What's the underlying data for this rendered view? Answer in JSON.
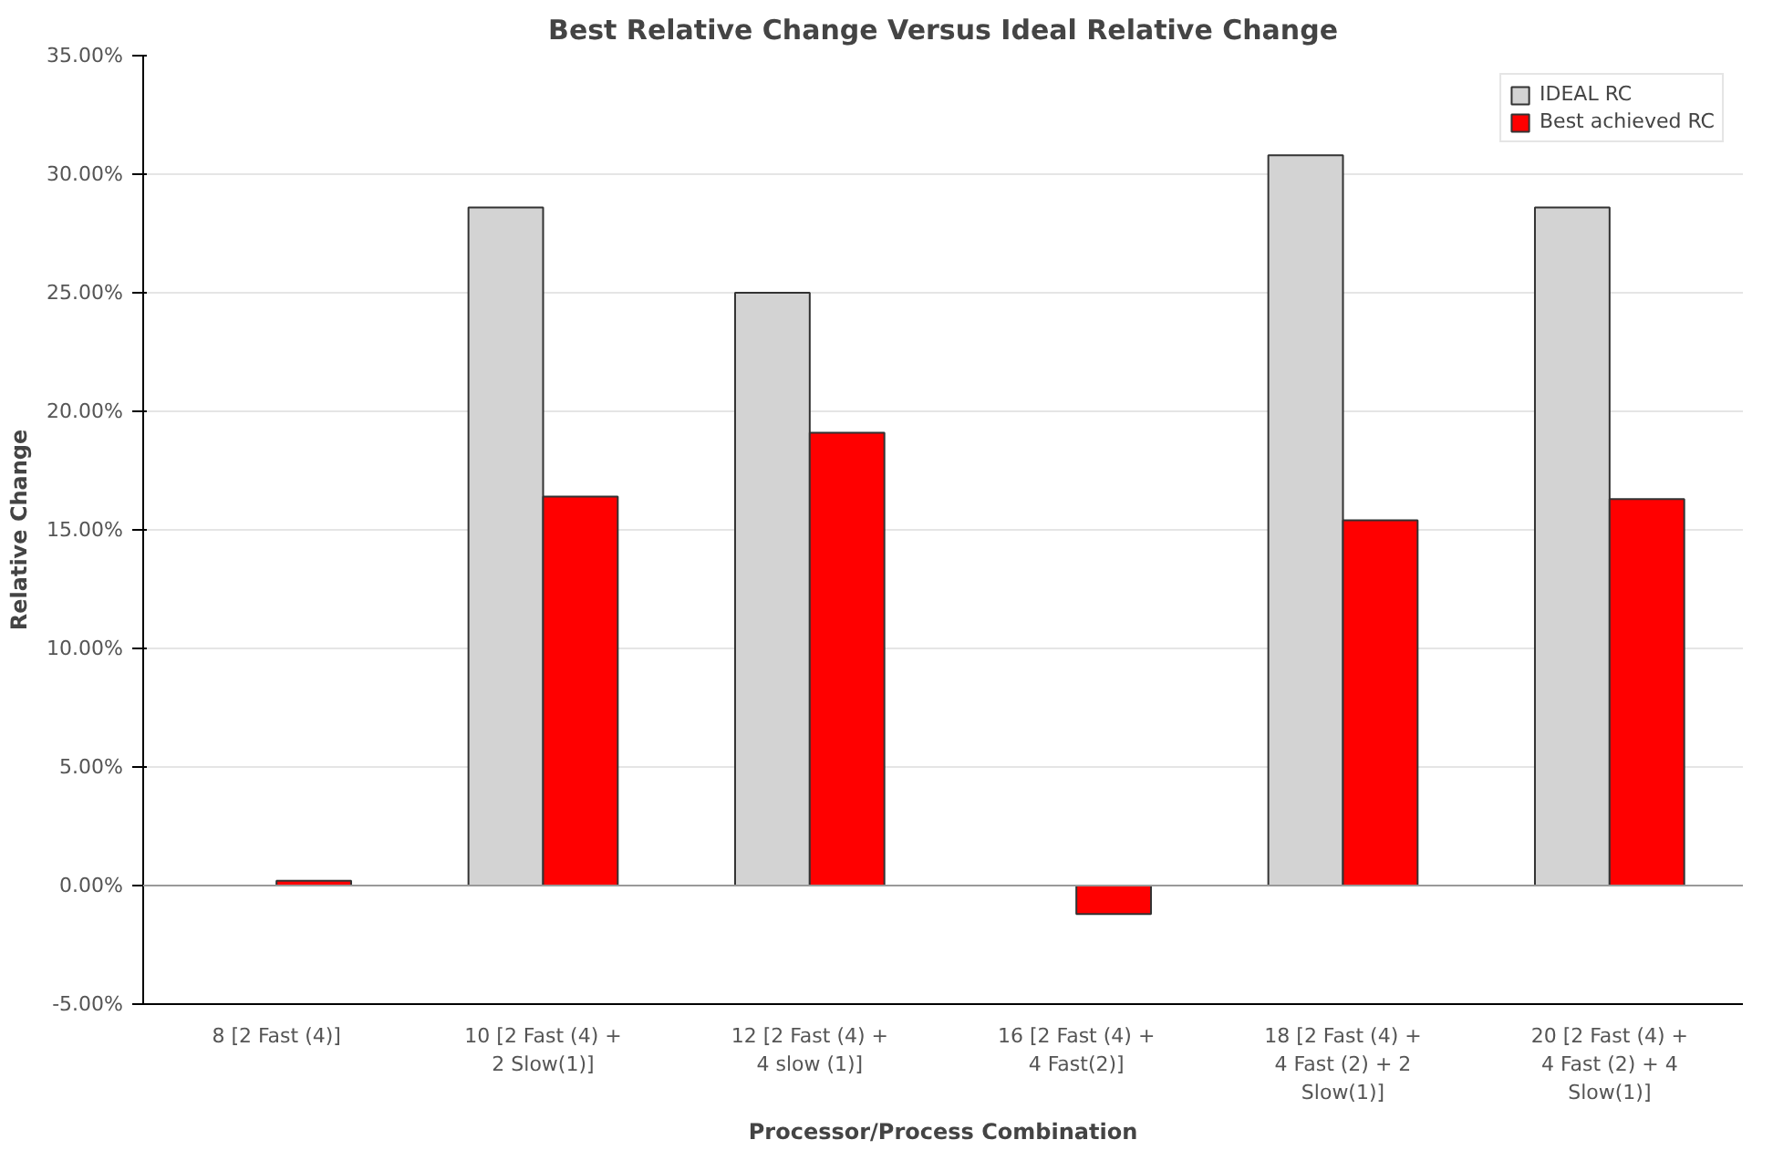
{
  "chart_data": {
    "type": "bar",
    "title": "Best Relative Change Versus Ideal Relative Change",
    "xlabel": "Processor/Process Combination",
    "ylabel": "Relative Change",
    "categories": [
      "8 [2 Fast (4)]",
      "10 [2 Fast (4) +\n2 Slow(1)]",
      "12 [2 Fast (4) +\n4 slow (1)]",
      "16 [2 Fast (4) +\n4 Fast(2)]",
      "18 [2 Fast (4) +\n4 Fast (2) + 2\nSlow(1)]",
      "20 [2 Fast (4) +\n4 Fast (2) + 4\nSlow(1)]"
    ],
    "series": [
      {
        "name": "IDEAL RC",
        "color": "#d3d3d3",
        "values": [
          null,
          28.6,
          25.0,
          null,
          30.8,
          28.6
        ]
      },
      {
        "name": "Best achieved RC",
        "color": "#ff0000",
        "values": [
          0.2,
          16.4,
          19.1,
          -1.2,
          15.4,
          16.3
        ]
      }
    ],
    "ylim": [
      -5,
      35
    ],
    "yticks": [
      {
        "value": -5,
        "label": "-5.00%"
      },
      {
        "value": 0,
        "label": "0.00%"
      },
      {
        "value": 5,
        "label": "5.00%"
      },
      {
        "value": 10,
        "label": "10.00%"
      },
      {
        "value": 15,
        "label": "15.00%"
      },
      {
        "value": 20,
        "label": "20.00%"
      },
      {
        "value": 25,
        "label": "25.00%"
      },
      {
        "value": 30,
        "label": "30.00%"
      },
      {
        "value": 35,
        "label": "35.00%"
      }
    ],
    "grid": "y",
    "legend": "top right"
  }
}
